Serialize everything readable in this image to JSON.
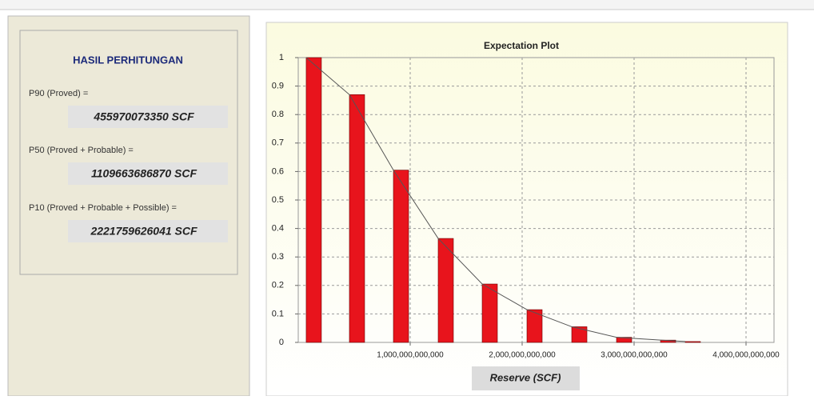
{
  "panel": {
    "title": "HASIL PERHITUNGAN",
    "items": [
      {
        "label": "P90 (Proved) =",
        "value": "455970073350 SCF"
      },
      {
        "label": "P50 (Proved + Probable) =",
        "value": "1109663686870 SCF"
      },
      {
        "label": "P10 (Proved + Probable + Possible) =",
        "value": "2221759626041 SCF"
      }
    ]
  },
  "chart_data": {
    "type": "bar",
    "title": "Expectation Plot",
    "x_label": "Reserve (SCF)",
    "x": [
      71000000000,
      457000000000,
      850000000000,
      1250000000000,
      1643000000000,
      2043000000000,
      2443000000000,
      2843000000000,
      3236000000000,
      3457000000000
    ],
    "values": [
      1,
      0.87,
      0.605,
      0.365,
      0.205,
      0.115,
      0.055,
      0.018,
      0.008,
      0.003
    ],
    "color": "#e8141c",
    "line_color": "#555555",
    "xlim": [
      0,
      4250000000000
    ],
    "xticks": [
      {
        "value": 1000000000000,
        "label": "1,000,000,000,000"
      },
      {
        "value": 2000000000000,
        "label": "2,000,000,000,000"
      },
      {
        "value": 3000000000000,
        "label": "3,000,000,000,000"
      },
      {
        "value": 4000000000000,
        "label": "4,000,000,000,000"
      }
    ],
    "ylim": [
      0,
      1
    ],
    "yticks": [
      0,
      0.1,
      0.2,
      0.3,
      0.4,
      0.5,
      0.6,
      0.7,
      0.8,
      0.9,
      1
    ],
    "grid": true
  }
}
